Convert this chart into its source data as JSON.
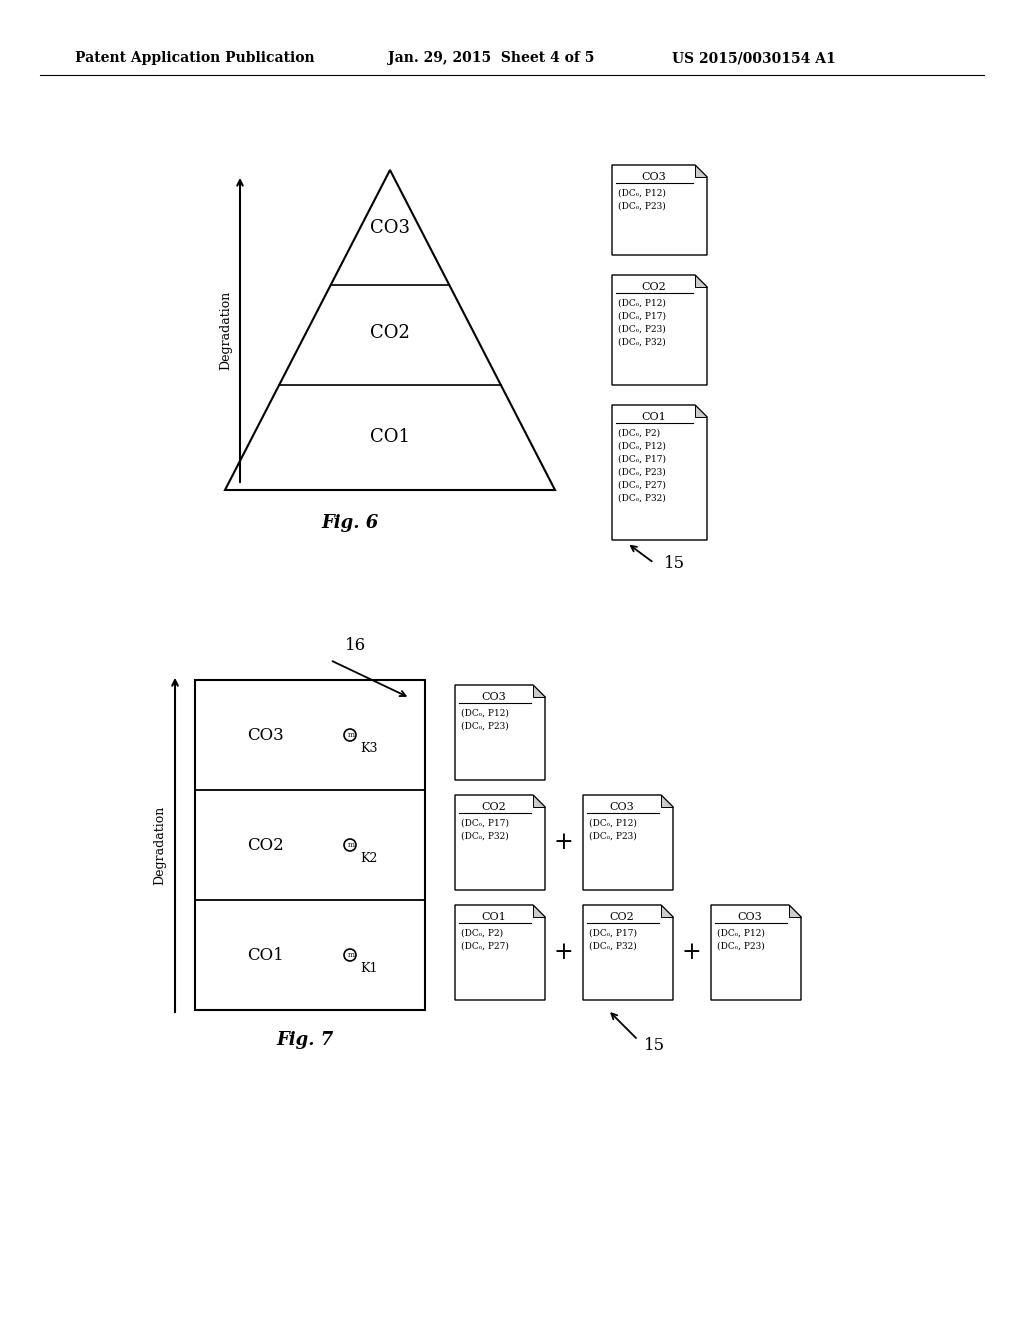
{
  "bg_color": "#ffffff",
  "header_left": "Patent Application Publication",
  "header_mid": "Jan. 29, 2015  Sheet 4 of 5",
  "header_right": "US 2015/0030154 A1",
  "fig6_label": "Fig. 6",
  "fig7_label": "Fig. 7",
  "triangle_label_co3": "CO3",
  "triangle_label_co2": "CO2",
  "triangle_label_co1": "CO1",
  "degradation_label": "Degradation",
  "label_15_fig6": "15",
  "label_15_fig7": "15",
  "label_16": "16",
  "doc_co3_fig6_title": "CO3",
  "doc_co3_fig6_lines": [
    "(DCₒ, P12)",
    "(DCₒ, P23)"
  ],
  "doc_co2_fig6_title": "CO2",
  "doc_co2_fig6_lines": [
    "(DCₒ, P12)",
    "(DCₒ, P17)",
    "(DCₒ, P23)",
    "(DCₒ, P32)"
  ],
  "doc_co1_fig6_title": "CO1",
  "doc_co1_fig6_lines": [
    "(DCₒ, P2)",
    "(DCₒ, P12)",
    "(DCₒ, P17)",
    "(DCₒ, P23)",
    "(DCₒ, P27)",
    "(DCₒ, P32)"
  ],
  "fig7_box_labels": [
    "CO3",
    "CO2",
    "CO1"
  ],
  "fig7_key_labels": [
    "K3",
    "K2",
    "K1"
  ],
  "doc_co3_fig7_title": "CO3",
  "doc_co3_fig7_lines": [
    "(DCₒ, P12)",
    "(DCₒ, P23)"
  ],
  "doc_co2a_fig7_title": "CO2",
  "doc_co2a_fig7_lines": [
    "(DCₒ, P17)",
    "(DCₒ, P32)"
  ],
  "doc_co3b_fig7_title": "CO3",
  "doc_co3b_fig7_lines": [
    "(DCₒ, P12)",
    "(DCₒ, P23)"
  ],
  "doc_co1_fig7_title": "CO1",
  "doc_co1_fig7_lines": [
    "(DCₒ, P2)",
    "(DCₒ, P27)"
  ],
  "doc_co2b_fig7_title": "CO2",
  "doc_co2b_fig7_lines": [
    "(DCₒ, P17)",
    "(DCₒ, P32)"
  ],
  "doc_co3c_fig7_title": "CO3",
  "doc_co3c_fig7_lines": [
    "(DCₒ, P12)",
    "(DCₒ, P23)"
  ]
}
